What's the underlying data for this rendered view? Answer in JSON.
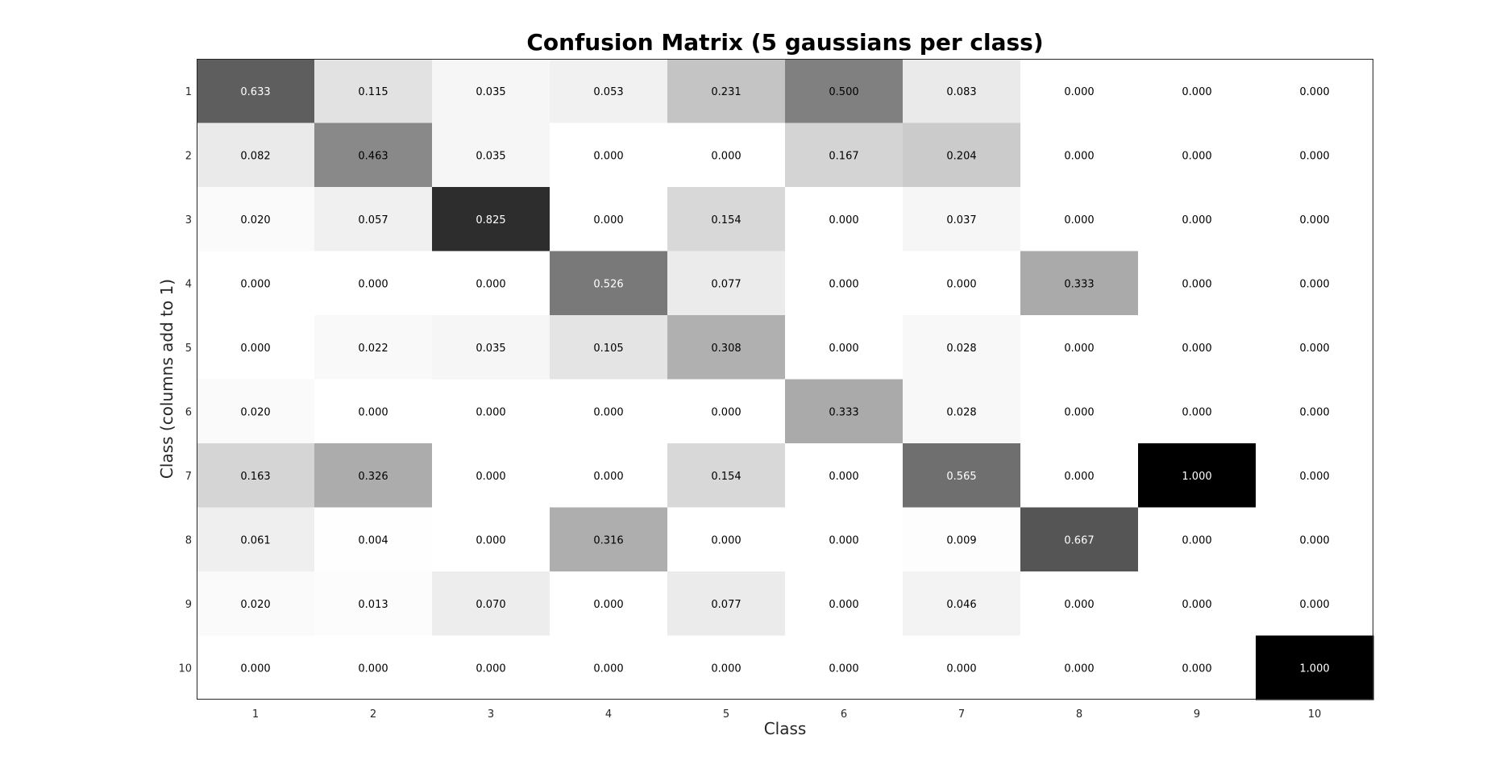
{
  "chart_data": {
    "type": "heatmap",
    "title": "Confusion Matrix (5 gaussians per class)",
    "xlabel": "Class",
    "ylabel": "Class (columns add to 1)",
    "x_categories": [
      "1",
      "2",
      "3",
      "4",
      "5",
      "6",
      "7",
      "8",
      "9",
      "10"
    ],
    "y_categories": [
      "1",
      "2",
      "3",
      "4",
      "5",
      "6",
      "7",
      "8",
      "9",
      "10"
    ],
    "colormap": "white-to-black (gray)",
    "value_range": [
      0,
      1
    ],
    "grid": false,
    "legend": "none",
    "values": [
      [
        0.633,
        0.115,
        0.035,
        0.053,
        0.231,
        0.5,
        0.083,
        0.0,
        0.0,
        0.0
      ],
      [
        0.082,
        0.463,
        0.035,
        0.0,
        0.0,
        0.167,
        0.204,
        0.0,
        0.0,
        0.0
      ],
      [
        0.02,
        0.057,
        0.825,
        0.0,
        0.154,
        0.0,
        0.037,
        0.0,
        0.0,
        0.0
      ],
      [
        0.0,
        0.0,
        0.0,
        0.526,
        0.077,
        0.0,
        0.0,
        0.333,
        0.0,
        0.0
      ],
      [
        0.0,
        0.022,
        0.035,
        0.105,
        0.308,
        0.0,
        0.028,
        0.0,
        0.0,
        0.0
      ],
      [
        0.02,
        0.0,
        0.0,
        0.0,
        0.0,
        0.333,
        0.028,
        0.0,
        0.0,
        0.0
      ],
      [
        0.163,
        0.326,
        0.0,
        0.0,
        0.154,
        0.0,
        0.565,
        0.0,
        1.0,
        0.0
      ],
      [
        0.061,
        0.004,
        0.0,
        0.316,
        0.0,
        0.0,
        0.009,
        0.667,
        0.0,
        0.0
      ],
      [
        0.02,
        0.013,
        0.07,
        0.0,
        0.077,
        0.0,
        0.046,
        0.0,
        0.0,
        0.0
      ],
      [
        0.0,
        0.0,
        0.0,
        0.0,
        0.0,
        0.0,
        0.0,
        0.0,
        0.0,
        1.0
      ]
    ]
  },
  "colors": {
    "background": "#ffffff",
    "axes_frame": "#262626",
    "text_dark": "#000000",
    "text_light": "#ffffff"
  }
}
